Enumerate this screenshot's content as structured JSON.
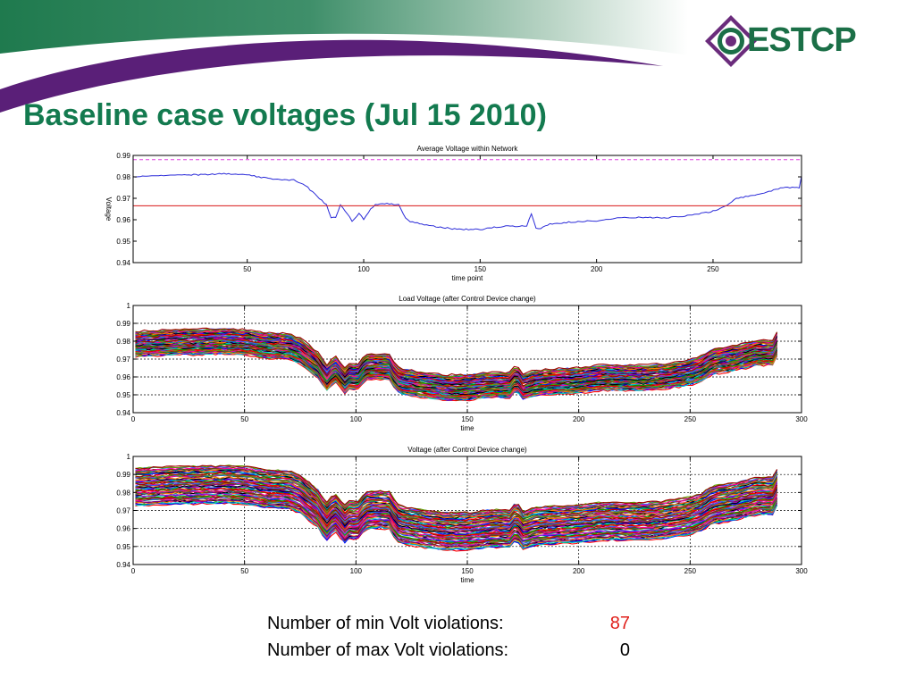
{
  "slide": {
    "title": "Baseline case voltages (Jul 15 2010)",
    "logo_text": "ESTCP",
    "colors": {
      "title": "#137a4f",
      "banner_green": "#1f7a4e",
      "banner_purple": "#5a1f78",
      "logo_green": "#1b6f47",
      "logo_purple": "#6b2c7c",
      "violation_value": "#e0201b"
    }
  },
  "stats": {
    "min_label": "Number of min Volt violations:",
    "min_value": "87",
    "max_label": "Number of max Volt violations:",
    "max_value": "0"
  },
  "chart_data": [
    {
      "type": "line",
      "title": "Average Voltage within Network",
      "xlabel": "time point",
      "ylabel": "Voltage",
      "xlim": [
        1,
        288
      ],
      "ylim": [
        0.94,
        0.99
      ],
      "xticks": [
        50,
        100,
        150,
        200,
        250
      ],
      "xtick_labels": [
        "50",
        "100",
        "150",
        "200",
        "250"
      ],
      "yticks": [
        0.94,
        0.95,
        0.96,
        0.97,
        0.98,
        0.99
      ],
      "ytick_labels": [
        "0.94",
        "0.95",
        "0.96",
        "0.97",
        "0.98",
        "0.99"
      ],
      "grid": false,
      "series": [
        {
          "role": "average",
          "color": "#2a2ad8",
          "x": [
            1,
            10,
            20,
            30,
            40,
            50,
            60,
            70,
            75,
            80,
            84,
            86,
            88,
            90,
            95,
            98,
            100,
            103,
            105,
            110,
            115,
            118,
            120,
            125,
            130,
            140,
            150,
            160,
            170,
            172,
            174,
            176,
            180,
            190,
            200,
            210,
            220,
            230,
            240,
            250,
            255,
            260,
            270,
            280,
            287,
            288
          ],
          "y": [
            0.98,
            0.9805,
            0.981,
            0.981,
            0.9815,
            0.981,
            0.979,
            0.9785,
            0.976,
            0.971,
            0.967,
            0.961,
            0.961,
            0.967,
            0.9595,
            0.963,
            0.96,
            0.965,
            0.967,
            0.9675,
            0.967,
            0.961,
            0.959,
            0.958,
            0.957,
            0.9555,
            0.9555,
            0.957,
            0.957,
            0.963,
            0.956,
            0.956,
            0.958,
            0.959,
            0.9595,
            0.961,
            0.961,
            0.961,
            0.962,
            0.964,
            0.966,
            0.97,
            0.972,
            0.975,
            0.975,
            0.98
          ]
        }
      ],
      "lines": [
        {
          "kind": "upper_limit",
          "y": 0.988,
          "color": "#e040e0",
          "style": "dashed"
        },
        {
          "kind": "target",
          "y": 0.9665,
          "color": "#d81818",
          "style": "solid"
        },
        {
          "kind": "lower_limit",
          "y": 0.94,
          "color": "#e040e0",
          "style": "dashed"
        }
      ]
    },
    {
      "type": "line",
      "title": "Load Voltage (after Control Device change)",
      "xlabel": "time",
      "ylabel": "",
      "xlim": [
        0,
        300
      ],
      "ylim": [
        0.94,
        1.0
      ],
      "xticks": [
        0,
        50,
        100,
        150,
        200,
        250,
        300
      ],
      "xtick_labels": [
        "0",
        "50",
        "100",
        "150",
        "200",
        "250",
        "300"
      ],
      "yticks": [
        0.94,
        0.95,
        0.96,
        0.97,
        0.98,
        0.99,
        1.0
      ],
      "ytick_labels": [
        "0.94",
        "0.95",
        "0.96",
        "0.97",
        "0.98",
        "0.99",
        "1"
      ],
      "grid": true,
      "data_x_end": 289,
      "envelope": {
        "x": [
          1,
          10,
          20,
          30,
          40,
          50,
          60,
          70,
          75,
          80,
          84,
          86,
          88,
          90,
          95,
          98,
          100,
          103,
          105,
          110,
          115,
          118,
          120,
          125,
          130,
          140,
          150,
          160,
          170,
          172,
          174,
          176,
          180,
          190,
          200,
          210,
          220,
          230,
          240,
          250,
          255,
          260,
          270,
          280,
          288,
          289
        ],
        "upper": [
          0.9855,
          0.986,
          0.9865,
          0.9865,
          0.987,
          0.9865,
          0.9845,
          0.984,
          0.9815,
          0.9765,
          0.9725,
          0.9665,
          0.9665,
          0.9725,
          0.965,
          0.9685,
          0.9655,
          0.9705,
          0.9725,
          0.973,
          0.9725,
          0.9665,
          0.9645,
          0.9635,
          0.9625,
          0.961,
          0.961,
          0.9625,
          0.9625,
          0.9685,
          0.9615,
          0.9615,
          0.9635,
          0.9645,
          0.965,
          0.9665,
          0.9665,
          0.9665,
          0.9675,
          0.9695,
          0.9715,
          0.9755,
          0.9775,
          0.9805,
          0.9805,
          0.9855
        ],
        "lower": [
          0.9715,
          0.972,
          0.9725,
          0.9725,
          0.973,
          0.9725,
          0.9705,
          0.97,
          0.9675,
          0.9625,
          0.9585,
          0.9525,
          0.9525,
          0.9585,
          0.951,
          0.9545,
          0.9515,
          0.9565,
          0.9585,
          0.959,
          0.9585,
          0.9525,
          0.9505,
          0.9495,
          0.9485,
          0.947,
          0.947,
          0.9485,
          0.9485,
          0.9545,
          0.9475,
          0.9475,
          0.9495,
          0.9505,
          0.951,
          0.9525,
          0.9525,
          0.9525,
          0.9535,
          0.9555,
          0.9575,
          0.9615,
          0.9635,
          0.9665,
          0.9665,
          0.9715
        ]
      }
    },
    {
      "type": "line",
      "title": "Voltage (after Control Device change)",
      "xlabel": "time",
      "ylabel": "",
      "xlim": [
        0,
        300
      ],
      "ylim": [
        0.94,
        1.0
      ],
      "xticks": [
        0,
        50,
        100,
        150,
        200,
        250,
        300
      ],
      "xtick_labels": [
        "0",
        "50",
        "100",
        "150",
        "200",
        "250",
        "300"
      ],
      "yticks": [
        0.94,
        0.95,
        0.96,
        0.97,
        0.98,
        0.99,
        1.0
      ],
      "ytick_labels": [
        "0.94",
        "0.95",
        "0.96",
        "0.97",
        "0.98",
        "0.99",
        "1"
      ],
      "grid": true,
      "data_x_end": 289,
      "envelope": {
        "x": [
          1,
          10,
          20,
          30,
          40,
          50,
          60,
          70,
          75,
          80,
          84,
          86,
          88,
          90,
          95,
          98,
          100,
          103,
          105,
          110,
          115,
          118,
          120,
          125,
          130,
          140,
          150,
          160,
          170,
          172,
          174,
          176,
          180,
          190,
          200,
          210,
          220,
          230,
          240,
          250,
          255,
          260,
          270,
          280,
          288,
          289
        ],
        "upper": [
          0.9935,
          0.994,
          0.9945,
          0.9945,
          0.995,
          0.9945,
          0.9925,
          0.992,
          0.9895,
          0.9845,
          0.9805,
          0.9745,
          0.9745,
          0.9805,
          0.973,
          0.9765,
          0.9735,
          0.9785,
          0.9805,
          0.981,
          0.9805,
          0.9745,
          0.9725,
          0.9715,
          0.9705,
          0.969,
          0.969,
          0.9705,
          0.9705,
          0.9765,
          0.9695,
          0.9695,
          0.9715,
          0.9725,
          0.973,
          0.9745,
          0.9745,
          0.9745,
          0.9755,
          0.9775,
          0.9795,
          0.9835,
          0.9855,
          0.9885,
          0.9885,
          0.9935
        ],
        "lower": [
          0.9725,
          0.973,
          0.9735,
          0.9735,
          0.974,
          0.9735,
          0.9715,
          0.971,
          0.9685,
          0.9635,
          0.9595,
          0.9535,
          0.9535,
          0.9595,
          0.952,
          0.9555,
          0.9525,
          0.9575,
          0.9595,
          0.96,
          0.9595,
          0.9535,
          0.9515,
          0.9505,
          0.9495,
          0.948,
          0.948,
          0.9495,
          0.9495,
          0.9555,
          0.9485,
          0.9485,
          0.9505,
          0.9515,
          0.952,
          0.9535,
          0.9535,
          0.9535,
          0.9545,
          0.9565,
          0.9585,
          0.9625,
          0.9645,
          0.9675,
          0.9675,
          0.9725
        ]
      }
    }
  ]
}
